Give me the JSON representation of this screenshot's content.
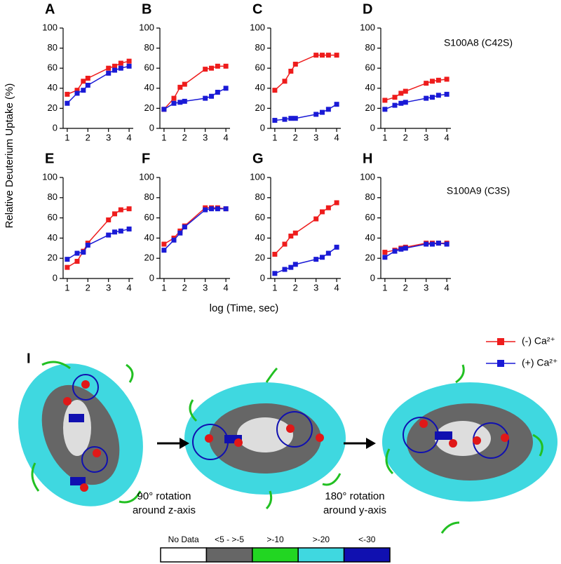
{
  "chart_data": [
    {
      "type": "line",
      "title": "A",
      "x": [
        1,
        1.48,
        1.78,
        2,
        3,
        3.3,
        3.6,
        4
      ],
      "xlim": [
        0.8,
        4.2
      ],
      "xticks": [
        1,
        2,
        3,
        4
      ],
      "ylim": [
        0,
        100
      ],
      "yticks": [
        0,
        20,
        40,
        60,
        80,
        100
      ],
      "series": [
        {
          "name": "(-) Ca²⁺",
          "color": "#ee1c1c",
          "values": [
            34,
            38,
            47,
            50,
            60,
            62,
            65,
            67
          ]
        },
        {
          "name": "(+) Ca²⁺",
          "color": "#1a1ad6",
          "values": [
            25,
            35,
            38,
            43,
            55,
            58,
            60,
            62
          ]
        }
      ]
    },
    {
      "type": "line",
      "title": "B",
      "x": [
        1,
        1.48,
        1.78,
        2,
        3,
        3.3,
        3.6,
        4
      ],
      "xlim": [
        0.8,
        4.2
      ],
      "xticks": [
        1,
        2,
        3,
        4
      ],
      "ylim": [
        0,
        100
      ],
      "yticks": [
        0,
        20,
        40,
        60,
        80,
        100
      ],
      "series": [
        {
          "color": "#ee1c1c",
          "values": [
            19,
            30,
            41,
            44,
            59,
            60,
            62,
            62
          ]
        },
        {
          "color": "#1a1ad6",
          "values": [
            19,
            25,
            26,
            27,
            30,
            32,
            36,
            40
          ]
        }
      ]
    },
    {
      "type": "line",
      "title": "C",
      "x": [
        1,
        1.48,
        1.78,
        2,
        3,
        3.3,
        3.6,
        4
      ],
      "xlim": [
        0.8,
        4.2
      ],
      "xticks": [
        1,
        2,
        3,
        4
      ],
      "ylim": [
        0,
        100
      ],
      "yticks": [
        0,
        20,
        40,
        60,
        80,
        100
      ],
      "series": [
        {
          "color": "#ee1c1c",
          "values": [
            38,
            47,
            57,
            64,
            73,
            73,
            73,
            73
          ]
        },
        {
          "color": "#1a1ad6",
          "values": [
            8,
            9,
            10,
            10,
            14,
            16,
            19,
            24
          ]
        }
      ]
    },
    {
      "type": "line",
      "title": "D",
      "x": [
        1,
        1.48,
        1.78,
        2,
        3,
        3.3,
        3.6,
        4
      ],
      "xlim": [
        0.8,
        4.2
      ],
      "xticks": [
        1,
        2,
        3,
        4
      ],
      "ylim": [
        0,
        100
      ],
      "yticks": [
        0,
        20,
        40,
        60,
        80,
        100
      ],
      "series": [
        {
          "color": "#ee1c1c",
          "values": [
            28,
            31,
            35,
            37,
            45,
            47,
            48,
            49
          ]
        },
        {
          "color": "#1a1ad6",
          "values": [
            19,
            23,
            25,
            26,
            30,
            31,
            33,
            34
          ]
        }
      ]
    },
    {
      "type": "line",
      "title": "E",
      "x": [
        1,
        1.48,
        1.78,
        2,
        3,
        3.3,
        3.6,
        4
      ],
      "xlim": [
        0.8,
        4.2
      ],
      "xticks": [
        1,
        2,
        3,
        4
      ],
      "ylim": [
        0,
        100
      ],
      "yticks": [
        0,
        20,
        40,
        60,
        80,
        100
      ],
      "series": [
        {
          "color": "#ee1c1c",
          "values": [
            11,
            17,
            27,
            35,
            58,
            64,
            68,
            69
          ]
        },
        {
          "color": "#1a1ad6",
          "values": [
            19,
            25,
            26,
            33,
            43,
            46,
            47,
            49
          ]
        }
      ]
    },
    {
      "type": "line",
      "title": "F",
      "x": [
        1,
        1.48,
        1.78,
        2,
        3,
        3.3,
        3.6,
        4
      ],
      "xlim": [
        0.8,
        4.2
      ],
      "xticks": [
        1,
        2,
        3,
        4
      ],
      "ylim": [
        0,
        100
      ],
      "yticks": [
        0,
        20,
        40,
        60,
        80,
        100
      ],
      "series": [
        {
          "color": "#ee1c1c",
          "values": [
            34,
            40,
            47,
            52,
            70,
            70,
            70,
            69
          ]
        },
        {
          "color": "#1a1ad6",
          "values": [
            28,
            38,
            45,
            51,
            68,
            69,
            69,
            69
          ]
        }
      ]
    },
    {
      "type": "line",
      "title": "G",
      "x": [
        1,
        1.48,
        1.78,
        2,
        3,
        3.3,
        3.6,
        4
      ],
      "xlim": [
        0.8,
        4.2
      ],
      "xticks": [
        1,
        2,
        3,
        4
      ],
      "ylim": [
        0,
        100
      ],
      "yticks": [
        0,
        20,
        40,
        60,
        80,
        100
      ],
      "series": [
        {
          "color": "#ee1c1c",
          "values": [
            24,
            34,
            42,
            45,
            59,
            66,
            70,
            75
          ]
        },
        {
          "color": "#1a1ad6",
          "values": [
            5,
            9,
            11,
            14,
            19,
            21,
            25,
            31
          ]
        }
      ]
    },
    {
      "type": "line",
      "title": "H",
      "x": [
        1,
        1.48,
        1.78,
        2,
        3,
        3.3,
        3.6,
        4
      ],
      "xlim": [
        0.8,
        4.2
      ],
      "xticks": [
        1,
        2,
        3,
        4
      ],
      "ylim": [
        0,
        100
      ],
      "yticks": [
        0,
        20,
        40,
        60,
        80,
        100
      ],
      "series": [
        {
          "color": "#ee1c1c",
          "values": [
            26,
            28,
            30,
            31,
            35,
            35,
            35,
            35
          ]
        },
        {
          "color": "#1a1ad6",
          "values": [
            21,
            27,
            29,
            30,
            34,
            34,
            35,
            34
          ]
        }
      ]
    }
  ],
  "figure": {
    "ylabel": "Relative Deuterium Uptake (%)",
    "xlabel": "log (Time, sec)",
    "row_labels": [
      "S100A8 (C42S)",
      "S100A9 (C3S)"
    ],
    "panel_I": "I",
    "rotations": [
      [
        "90° rotation",
        "around z-axis"
      ],
      [
        "180° rotation",
        "around y-axis"
      ]
    ],
    "scale_labels": [
      "No Data",
      "<5 - >-5",
      ">-10",
      ">-20",
      "<-30"
    ]
  }
}
